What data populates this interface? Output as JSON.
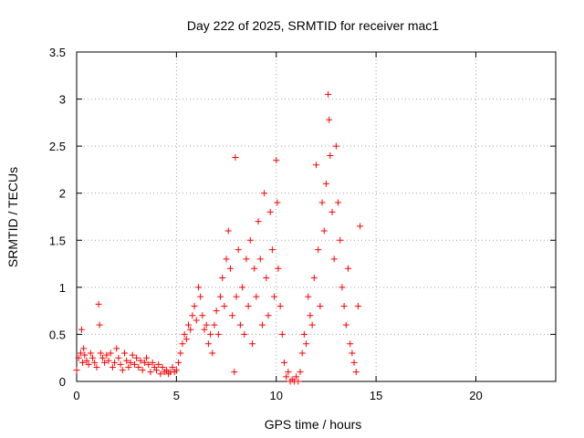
{
  "chart_data": {
    "type": "scatter",
    "title": "Day 222 of 2025, SRMTID for receiver mac1",
    "xlabel": "GPS time / hours",
    "ylabel": "SRMTID / TECUs",
    "xlim": [
      0,
      24
    ],
    "ylim": [
      0,
      3.5
    ],
    "xticks": [
      0,
      5,
      10,
      15,
      20
    ],
    "xtick_labels": [
      "0",
      "5",
      "10",
      "15",
      "20"
    ],
    "yticks": [
      0,
      0.5,
      1,
      1.5,
      2,
      2.5,
      3,
      3.5
    ],
    "ytick_labels": [
      "0",
      "0.5",
      "1",
      "1.5",
      "2",
      "2.5",
      "3",
      "3.5"
    ],
    "grid": true,
    "marker": "plus",
    "series": [
      {
        "name": "SRMTID",
        "color": "#ff0000",
        "x": [
          0.0,
          0.1,
          0.2,
          0.25,
          0.3,
          0.35,
          0.4,
          0.5,
          0.6,
          0.7,
          0.8,
          0.9,
          1.0,
          1.1,
          1.15,
          1.2,
          1.3,
          1.4,
          1.5,
          1.6,
          1.7,
          1.8,
          1.9,
          2.0,
          2.1,
          2.2,
          2.3,
          2.4,
          2.5,
          2.6,
          2.7,
          2.8,
          2.9,
          3.0,
          3.1,
          3.2,
          3.3,
          3.4,
          3.5,
          3.6,
          3.7,
          3.8,
          3.9,
          4.0,
          4.1,
          4.2,
          4.3,
          4.4,
          4.5,
          4.6,
          4.7,
          4.8,
          4.9,
          5.0,
          5.1,
          5.2,
          5.3,
          5.4,
          5.5,
          5.6,
          5.7,
          5.8,
          5.9,
          6.0,
          6.1,
          6.2,
          6.3,
          6.4,
          6.5,
          6.6,
          6.7,
          6.8,
          6.9,
          7.0,
          7.1,
          7.2,
          7.3,
          7.4,
          7.5,
          7.6,
          7.7,
          7.8,
          7.9,
          7.95,
          8.0,
          8.1,
          8.2,
          8.3,
          8.4,
          8.5,
          8.6,
          8.7,
          8.8,
          8.9,
          9.0,
          9.1,
          9.2,
          9.3,
          9.4,
          9.5,
          9.6,
          9.7,
          9.8,
          9.9,
          10.0,
          10.05,
          10.1,
          10.2,
          10.3,
          10.4,
          10.5,
          10.6,
          10.7,
          10.8,
          10.9,
          11.0,
          11.1,
          11.2,
          11.3,
          11.4,
          11.5,
          11.6,
          11.7,
          11.8,
          11.9,
          12.0,
          12.1,
          12.2,
          12.3,
          12.4,
          12.5,
          12.6,
          12.65,
          12.7,
          12.8,
          12.9,
          13.0,
          13.1,
          13.2,
          13.3,
          13.4,
          13.5,
          13.6,
          13.7,
          13.8,
          13.9,
          14.0,
          14.1,
          14.2
        ],
        "y": [
          0.12,
          0.25,
          0.3,
          0.55,
          0.2,
          0.35,
          0.28,
          0.22,
          0.18,
          0.3,
          0.25,
          0.2,
          0.15,
          0.82,
          0.6,
          0.3,
          0.25,
          0.2,
          0.28,
          0.22,
          0.3,
          0.15,
          0.2,
          0.35,
          0.25,
          0.18,
          0.12,
          0.3,
          0.22,
          0.15,
          0.2,
          0.28,
          0.18,
          0.25,
          0.15,
          0.22,
          0.12,
          0.2,
          0.25,
          0.18,
          0.1,
          0.2,
          0.15,
          0.12,
          0.18,
          0.08,
          0.15,
          0.1,
          0.12,
          0.08,
          0.1,
          0.15,
          0.1,
          0.12,
          0.2,
          0.3,
          0.4,
          0.5,
          0.45,
          0.6,
          0.55,
          0.7,
          0.8,
          0.65,
          1.0,
          0.9,
          0.7,
          0.55,
          0.6,
          0.4,
          0.5,
          0.3,
          0.6,
          0.75,
          0.5,
          0.9,
          1.1,
          0.8,
          1.3,
          1.6,
          1.2,
          0.7,
          0.1,
          2.38,
          0.9,
          1.4,
          0.6,
          1.0,
          0.5,
          1.3,
          0.8,
          1.5,
          0.4,
          1.2,
          0.9,
          1.7,
          1.3,
          0.6,
          2.0,
          1.1,
          0.7,
          1.8,
          1.4,
          0.9,
          2.35,
          1.9,
          1.2,
          0.8,
          0.5,
          0.2,
          0.05,
          0.1,
          0.0,
          0.02,
          0.0,
          0.05,
          0.0,
          0.1,
          0.3,
          0.5,
          0.4,
          0.9,
          0.7,
          0.6,
          1.1,
          2.3,
          1.4,
          0.8,
          1.9,
          1.6,
          2.1,
          3.05,
          2.78,
          2.4,
          1.8,
          1.3,
          2.5,
          1.9,
          1.5,
          1.0,
          0.8,
          0.6,
          1.2,
          0.4,
          0.3,
          0.2,
          0.1,
          0.8,
          1.65
        ]
      }
    ]
  }
}
